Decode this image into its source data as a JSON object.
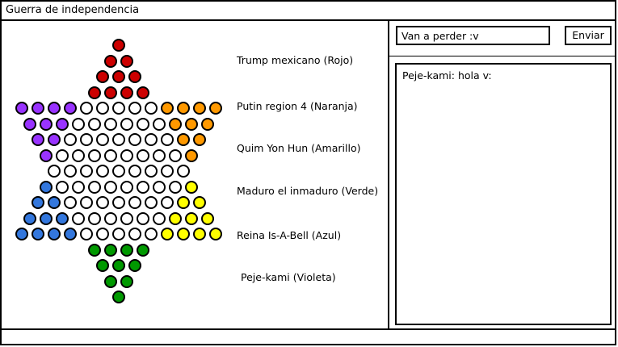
{
  "window": {
    "title": "Guerra de independencia"
  },
  "board": {
    "colors": {
      "red": "#cc0000",
      "orange": "#ff9900",
      "yellow": "#ffff00",
      "green": "#009900",
      "blue": "#3377dd",
      "violet": "#9933ff",
      "empty": "#ffffff"
    },
    "layout": [
      {
        "count": 1,
        "colors": [
          "red"
        ]
      },
      {
        "count": 2,
        "colors": [
          "red",
          "red"
        ]
      },
      {
        "count": 3,
        "colors": [
          "red",
          "red",
          "red"
        ]
      },
      {
        "count": 4,
        "colors": [
          "red",
          "red",
          "red",
          "red"
        ]
      },
      {
        "count": 13,
        "colors": [
          "violet",
          "violet",
          "violet",
          "violet",
          "empty",
          "empty",
          "empty",
          "empty",
          "empty",
          "orange",
          "orange",
          "orange",
          "orange"
        ]
      },
      {
        "count": 12,
        "colors": [
          "violet",
          "violet",
          "violet",
          "empty",
          "empty",
          "empty",
          "empty",
          "empty",
          "empty",
          "orange",
          "orange",
          "orange"
        ]
      },
      {
        "count": 11,
        "colors": [
          "violet",
          "violet",
          "empty",
          "empty",
          "empty",
          "empty",
          "empty",
          "empty",
          "empty",
          "orange",
          "orange"
        ]
      },
      {
        "count": 10,
        "colors": [
          "violet",
          "empty",
          "empty",
          "empty",
          "empty",
          "empty",
          "empty",
          "empty",
          "empty",
          "orange"
        ]
      },
      {
        "count": 9,
        "colors": [
          "empty",
          "empty",
          "empty",
          "empty",
          "empty",
          "empty",
          "empty",
          "empty",
          "empty"
        ]
      },
      {
        "count": 10,
        "colors": [
          "blue",
          "empty",
          "empty",
          "empty",
          "empty",
          "empty",
          "empty",
          "empty",
          "empty",
          "yellow"
        ]
      },
      {
        "count": 11,
        "colors": [
          "blue",
          "blue",
          "empty",
          "empty",
          "empty",
          "empty",
          "empty",
          "empty",
          "empty",
          "yellow",
          "yellow"
        ]
      },
      {
        "count": 12,
        "colors": [
          "blue",
          "blue",
          "blue",
          "empty",
          "empty",
          "empty",
          "empty",
          "empty",
          "empty",
          "yellow",
          "yellow",
          "yellow"
        ]
      },
      {
        "count": 13,
        "colors": [
          "blue",
          "blue",
          "blue",
          "blue",
          "empty",
          "empty",
          "empty",
          "empty",
          "empty",
          "yellow",
          "yellow",
          "yellow",
          "yellow"
        ]
      },
      {
        "count": 4,
        "colors": [
          "green",
          "green",
          "green",
          "green"
        ]
      },
      {
        "count": 3,
        "colors": [
          "green",
          "green",
          "green"
        ]
      },
      {
        "count": 2,
        "colors": [
          "green",
          "green"
        ]
      },
      {
        "count": 1,
        "colors": [
          "green"
        ]
      }
    ]
  },
  "players": [
    {
      "label": "Trump mexicano (Rojo)"
    },
    {
      "label": "Putin region 4 (Naranja)"
    },
    {
      "label": "Quim Yon Hun (Amarillo)"
    },
    {
      "label": "Maduro el inmaduro (Verde)"
    },
    {
      "label": "Reina Is-A-Bell (Azul)"
    },
    {
      "label": "Peje-kami (Violeta)"
    }
  ],
  "chat": {
    "input_value": "Van a perder :v",
    "send_label": "Enviar",
    "messages": [
      "Peje-kami: hola v:"
    ]
  }
}
